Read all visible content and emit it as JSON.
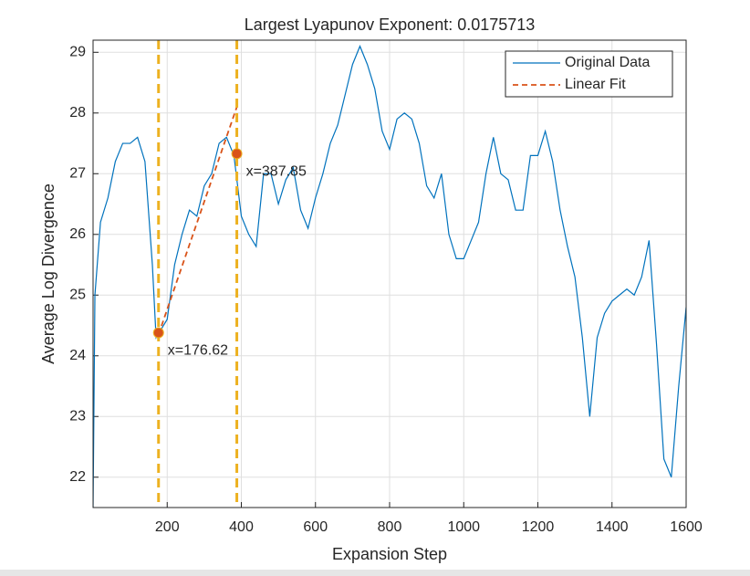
{
  "chart_data": {
    "type": "line",
    "title": "Largest Lyapunov Exponent: 0.0175713",
    "x_label": "Expansion Step",
    "y_label": "Average Log Divergence",
    "xlim": [
      0,
      1600
    ],
    "ylim": [
      21.5,
      29.2
    ],
    "xticks": [
      200,
      400,
      600,
      800,
      1000,
      1200,
      1400,
      1600
    ],
    "yticks": [
      22,
      23,
      24,
      25,
      26,
      27,
      28,
      29
    ],
    "grid": true,
    "legend": "top-right",
    "series": [
      {
        "name": "Original Data",
        "color": "#0072bd",
        "style": "solid",
        "x": [
          0,
          5,
          20,
          40,
          60,
          80,
          100,
          120,
          140,
          160,
          170,
          180,
          200,
          220,
          240,
          260,
          280,
          300,
          320,
          340,
          360,
          380,
          400,
          420,
          440,
          460,
          480,
          500,
          520,
          540,
          560,
          580,
          600,
          620,
          640,
          660,
          680,
          700,
          720,
          740,
          760,
          780,
          800,
          820,
          840,
          860,
          880,
          900,
          920,
          940,
          960,
          980,
          1000,
          1020,
          1040,
          1060,
          1080,
          1100,
          1120,
          1140,
          1160,
          1180,
          1200,
          1220,
          1240,
          1260,
          1280,
          1300,
          1320,
          1340,
          1360,
          1380,
          1400,
          1420,
          1440,
          1460,
          1480,
          1500,
          1520,
          1540,
          1560,
          1580,
          1600
        ],
        "values": [
          21.5,
          25,
          26.2,
          26.6,
          27.2,
          27.5,
          27.5,
          27.6,
          27.2,
          25.5,
          24.3,
          24.4,
          24.6,
          25.5,
          26,
          26.4,
          26.3,
          26.8,
          27,
          27.5,
          27.6,
          27.3,
          26.3,
          26,
          25.8,
          27,
          27,
          26.5,
          26.9,
          27.1,
          26.4,
          26.1,
          26.6,
          27,
          27.5,
          27.8,
          28.3,
          28.8,
          29.1,
          28.8,
          28.4,
          27.7,
          27.4,
          27.9,
          28,
          27.9,
          27.5,
          26.8,
          26.6,
          27,
          26,
          25.6,
          25.6,
          25.9,
          26.2,
          27,
          27.6,
          27,
          26.9,
          26.4,
          26.4,
          27.3,
          27.3,
          27.7,
          27.2,
          26.4,
          25.8,
          25.3,
          24.3,
          23,
          24.3,
          24.7,
          24.9,
          25,
          25.1,
          25,
          25.3,
          25.9,
          24.2,
          22.3,
          22,
          23.5,
          24.8
        ]
      },
      {
        "name": "Linear Fit",
        "color": "#d95319",
        "style": "dashed",
        "x": [
          176.62,
          387.85
        ],
        "values": [
          24.35,
          28.1
        ]
      }
    ],
    "vlines": {
      "color": "#edb120",
      "x": [
        176.62,
        387.85
      ]
    },
    "points": [
      {
        "x": 176.62,
        "y": 24.38,
        "label": "x=176.62"
      },
      {
        "x": 387.85,
        "y": 27.33,
        "label": "x=387.85"
      }
    ]
  }
}
